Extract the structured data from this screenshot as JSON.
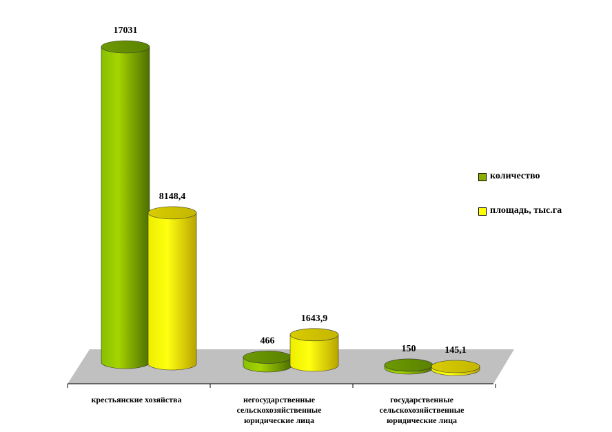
{
  "chart_data": {
    "type": "bar",
    "categories": [
      "крестьянские хозяйства",
      "негосударственные\nсельскохозяйственные\nюридические лица",
      "государственные\nсельскохозяйственные\nюридические лица"
    ],
    "series": [
      {
        "name": "количество",
        "values": [
          17031,
          466,
          150
        ],
        "labels": [
          "17031",
          "466",
          "150"
        ],
        "color": "#8db000"
      },
      {
        "name": "площадь, тыс.га",
        "values": [
          8148.4,
          1643.9,
          145.1
        ],
        "labels": [
          "8148,4",
          "1643,9",
          "145,1"
        ],
        "color": "#e8e800"
      }
    ],
    "ylim": [
      0,
      17031
    ],
    "grid": false,
    "legend_position": "right",
    "floor_color": "#c0c0c0"
  }
}
